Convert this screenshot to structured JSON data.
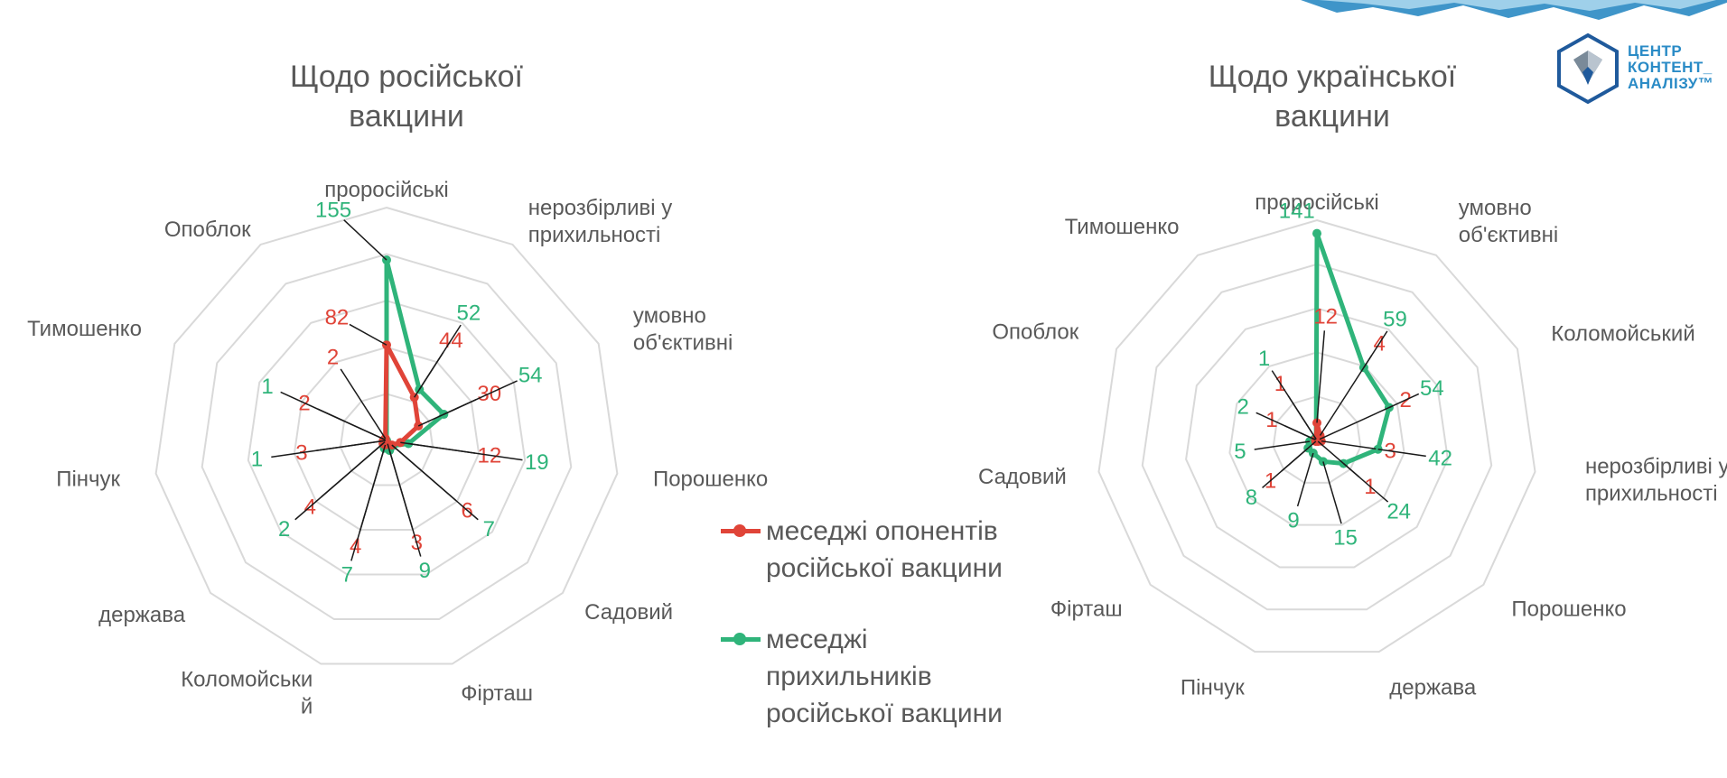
{
  "colors": {
    "opponents": "#e04438",
    "supporters": "#2fb47a",
    "grid": "#d9d9d9",
    "text": "#595959",
    "leader": "#1a1a1a"
  },
  "logo": {
    "line1": "ЦЕНТР",
    "line2": "КОНТЕНТ_",
    "line3": "АНАЛІЗУ™"
  },
  "legend": {
    "opponents": [
      "меседжі опонентів",
      "російської вакцини"
    ],
    "supporters": [
      "меседжі",
      "прихильників",
      "російської вакцини"
    ]
  },
  "chart_data": [
    {
      "type": "radar",
      "title_lines": [
        "Щодо російської",
        "вакцини"
      ],
      "categories": [
        "проросійські",
        "нерозбірливі у прихильності",
        "умовно об'єктивні",
        "Порошенко",
        "Садовий",
        "Фірташ",
        "Коломойський",
        "держава",
        "Пінчук",
        "Тимошенко",
        "Опоблок"
      ],
      "category_lines": [
        [
          "проросійські"
        ],
        [
          "нерозбірливі у",
          "прихильності"
        ],
        [
          "умовно",
          "об'єктивні"
        ],
        [
          "Порошенко"
        ],
        [
          "Садовий"
        ],
        [
          "Фірташ"
        ],
        [
          "Коломойськи",
          "й"
        ],
        [
          "держава"
        ],
        [
          "Пінчук"
        ],
        [
          "Тимошенко"
        ],
        [
          "Опоблок"
        ]
      ],
      "series": [
        {
          "name": "меседжі опонентів російської вакцини",
          "values": [
            82,
            44,
            30,
            12,
            6,
            3,
            4,
            4,
            3,
            2,
            2
          ]
        },
        {
          "name": "меседжі прихильників російської вакцини",
          "values": [
            155,
            52,
            54,
            19,
            7,
            9,
            7,
            2,
            1,
            1,
            0
          ]
        }
      ]
    },
    {
      "type": "radar",
      "title_lines": [
        "Щодо української",
        "вакцини"
      ],
      "categories": [
        "проросійські",
        "умовно об'єктивні",
        "Коломойський",
        "нерозбірливі у прихильності",
        "Порошенко",
        "держава",
        "Пінчук",
        "Фірташ",
        "Садовий",
        "Опоблок",
        "Тимошенко"
      ],
      "category_lines": [
        [
          "проросійські"
        ],
        [
          "умовно",
          "об'єктивні"
        ],
        [
          "Коломойський"
        ],
        [
          "нерозбірливі у",
          "прихильності"
        ],
        [
          "Порошенко"
        ],
        [
          "держава"
        ],
        [
          "Пінчук"
        ],
        [
          "Фірташ"
        ],
        [
          "Садовий"
        ],
        [
          "Опоблок"
        ],
        [
          "Тимошенко"
        ]
      ],
      "series": [
        {
          "name": "меседжі опонентів російської вакцини",
          "values": [
            12,
            4,
            2,
            3,
            1,
            0,
            0,
            1,
            0,
            1,
            1
          ]
        },
        {
          "name": "меседжі прихильників російської вакцини",
          "values": [
            141,
            59,
            54,
            42,
            24,
            15,
            9,
            8,
            5,
            2,
            1
          ]
        }
      ]
    }
  ]
}
